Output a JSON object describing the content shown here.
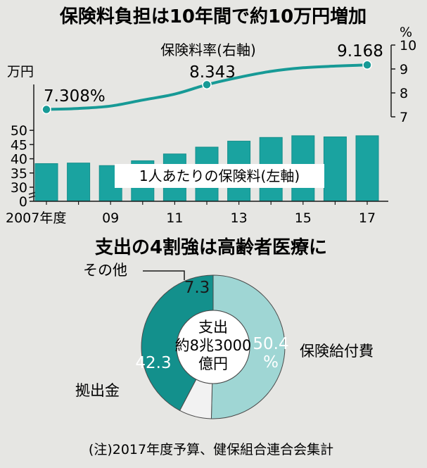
{
  "top_title": "保険料負担は10年間で約10万円増加",
  "bottom_title": "支出の4割強は高齢者医療に",
  "footnote": "(注)2017年度予算、健保組合連合会集計",
  "colors": {
    "bar": "#1aa3a0",
    "bar_edge": "#168f8c",
    "line": "#179a96",
    "donut_dark": "#13908c",
    "donut_light": "#9fd6d4",
    "donut_gray": "#f2f2f2",
    "background": "#e6e6e3"
  },
  "chart_data": [
    {
      "type": "bar",
      "categories": [
        "2007",
        "2008",
        "2009",
        "2010",
        "2011",
        "2012",
        "2013",
        "2014",
        "2015",
        "2016",
        "2017"
      ],
      "x_tick_labels": [
        "2007年度",
        "",
        "09",
        "",
        "11",
        "",
        "13",
        "",
        "15",
        "",
        "17"
      ],
      "values": [
        38.3,
        38.5,
        37.6,
        39.3,
        41.7,
        44.1,
        46.2,
        47.5,
        48.1,
        47.7,
        48.1
      ],
      "series_label": "1人あたりの保険料(左軸)",
      "ylabel": "万円",
      "yticks": [
        0,
        30,
        35,
        40,
        45,
        50
      ],
      "axis_break": true,
      "ylim": [
        0,
        50
      ]
    },
    {
      "type": "line",
      "x": [
        "2007",
        "2008",
        "2009",
        "2010",
        "2011",
        "2012",
        "2013",
        "2014",
        "2015",
        "2016",
        "2017"
      ],
      "values": [
        7.308,
        7.35,
        7.45,
        7.7,
        7.95,
        8.343,
        8.65,
        8.9,
        9.05,
        9.12,
        9.168
      ],
      "series_label": "保険料率(右軸)",
      "ylabel": "%",
      "yticks": [
        7,
        8,
        9,
        10
      ],
      "ylim": [
        7,
        10
      ],
      "labeled_points": [
        {
          "x": "2007",
          "label": "7.308%"
        },
        {
          "x": "2012",
          "label": "8.343"
        },
        {
          "x": "2017",
          "label": "9.168"
        }
      ]
    },
    {
      "type": "pie",
      "donut": true,
      "center_label": [
        "支出",
        "約8兆3000",
        "億円"
      ],
      "slices": [
        {
          "name": "保険給付費",
          "value": 50.4,
          "value_label": "50.4",
          "unit": "%"
        },
        {
          "name": "その他",
          "value": 7.3,
          "value_label": "7.3"
        },
        {
          "name": "拠出金",
          "value": 42.3,
          "value_label": "42.3"
        }
      ]
    }
  ]
}
